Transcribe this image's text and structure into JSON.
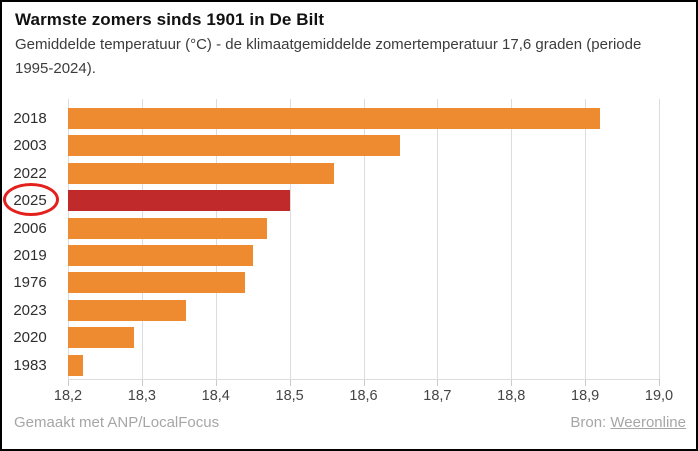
{
  "header": {
    "title": "Warmste zomers sinds 1901 in De Bilt",
    "subtitle": "Gemiddelde temperatuur (°C) - de klimaatgemiddelde zomertemperatuur 17,6 graden (periode 1995-2024)."
  },
  "chart_data": {
    "type": "bar",
    "orientation": "horizontal",
    "title": "Warmste zomers sinds 1901 in De Bilt",
    "xlabel": "Gemiddelde temperatuur (°C)",
    "categories": [
      "2018",
      "2003",
      "2022",
      "2025",
      "2006",
      "2019",
      "1976",
      "2023",
      "2020",
      "1983"
    ],
    "values": [
      18.92,
      18.65,
      18.56,
      18.5,
      18.47,
      18.45,
      18.44,
      18.36,
      18.29,
      18.22
    ],
    "xlim": [
      18.2,
      19.0
    ],
    "x_ticks": [
      "18,2",
      "18,3",
      "18,4",
      "18,5",
      "18,6",
      "18,7",
      "18,8",
      "18,9",
      "19,0"
    ],
    "x_tick_values": [
      18.2,
      18.3,
      18.4,
      18.5,
      18.6,
      18.7,
      18.8,
      18.9,
      19.0
    ],
    "grid": true,
    "legend": "none",
    "bar_color": "#ee8b31",
    "highlighted_category": "2025",
    "highlight_color": "#c02a2b",
    "annotation": {
      "type": "ellipse",
      "target_label": "2025",
      "color": "#e3201b"
    }
  },
  "footer": {
    "credit": "Gemaakt met ANP/LocalFocus",
    "source_label": "Bron:",
    "source_link": "Weeronline"
  },
  "colors": {
    "bar_orange": "#ee8b31",
    "bar_highlight_red": "#c02a2b",
    "annotation_red": "#e3201b",
    "gridline_gray": "#dcdcdc",
    "footer_gray": "#a6a6a6",
    "border_black": "#000000"
  }
}
